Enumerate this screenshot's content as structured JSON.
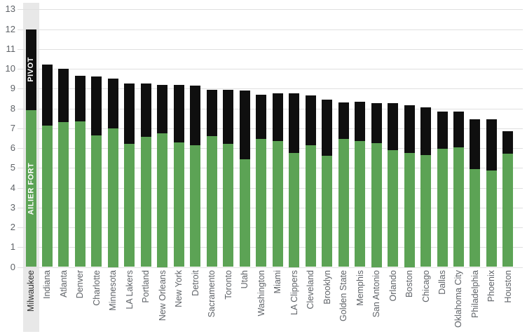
{
  "chart_data": {
    "type": "bar",
    "stacked": true,
    "title": "",
    "xlabel": "",
    "ylabel": "",
    "ylim": [
      0,
      13
    ],
    "ytick_step": 1,
    "grid": true,
    "legend_position": "inside-first-bar",
    "highlight_category": "Milwaukee",
    "highlight_color": "#e8e8e8",
    "categories": [
      "Milwaukee",
      "Indiana",
      "Atlanta",
      "Denver",
      "Charlotte",
      "Minnesota",
      "LA Lakers",
      "Portland",
      "New Orleans",
      "New York",
      "Detroit",
      "Sacramento",
      "Toronto",
      "Utah",
      "Washington",
      "Miami",
      "LA Clippers",
      "Cleveland",
      "Brooklyn",
      "Golden State",
      "Memphis",
      "San Antonio",
      "Orlando",
      "Boston",
      "Chicago",
      "Dallas",
      "Oklahoma City",
      "Philadelphia",
      "Phoenix",
      "Houston"
    ],
    "series": [
      {
        "name": "AILIER FORT",
        "color": "#5ca355",
        "values": [
          7.9,
          7.15,
          7.3,
          7.35,
          6.65,
          7.0,
          6.2,
          6.55,
          6.75,
          6.3,
          6.15,
          6.6,
          6.2,
          5.45,
          6.45,
          6.35,
          5.75,
          6.15,
          5.6,
          6.45,
          6.35,
          6.25,
          5.9,
          5.75,
          5.65,
          5.95,
          6.05,
          4.95,
          4.85,
          5.7
        ]
      },
      {
        "name": "PIVOT",
        "color": "#0f0f0f",
        "values": [
          4.1,
          3.05,
          2.7,
          2.3,
          2.95,
          2.5,
          3.05,
          2.7,
          2.45,
          2.9,
          3.0,
          2.35,
          2.75,
          3.45,
          2.25,
          2.4,
          3.0,
          2.5,
          2.85,
          1.85,
          2.0,
          2.0,
          2.35,
          2.4,
          2.4,
          1.9,
          1.8,
          2.5,
          2.6,
          1.15
        ]
      }
    ],
    "totals": [
      12.0,
      10.2,
      10.0,
      9.65,
      9.6,
      9.5,
      9.25,
      9.25,
      9.2,
      9.2,
      9.15,
      8.95,
      8.95,
      8.9,
      8.7,
      8.75,
      8.75,
      8.65,
      8.45,
      8.3,
      8.35,
      8.25,
      8.25,
      8.15,
      8.05,
      7.85,
      7.85,
      7.45,
      7.45,
      6.85
    ]
  }
}
